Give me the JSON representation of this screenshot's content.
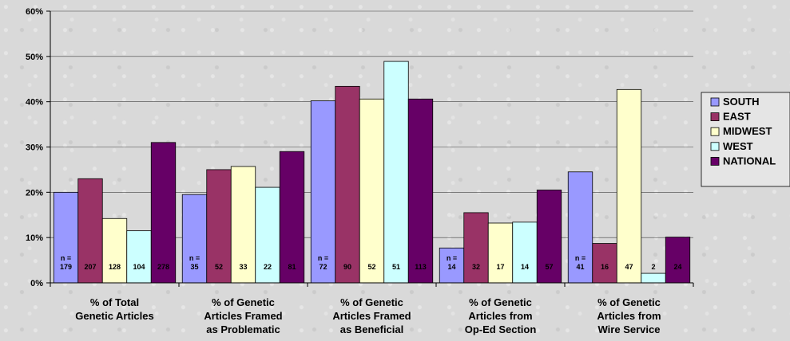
{
  "chart_data": {
    "type": "bar",
    "categories": [
      [
        "% of Total",
        "Genetic Articles"
      ],
      [
        "% of Genetic",
        "Articles Framed",
        "as Problematic"
      ],
      [
        "% of Genetic",
        "Articles Framed",
        "as Beneficial"
      ],
      [
        "% of Genetic",
        "Articles from",
        "Op-Ed Section"
      ],
      [
        "% of Genetic",
        "Articles from",
        "Wire Service"
      ]
    ],
    "ylim": [
      0,
      60
    ],
    "yticks": [
      "0%",
      "10%",
      "20%",
      "30%",
      "40%",
      "50%",
      "60%"
    ],
    "grid": true,
    "legend_position": "right",
    "n_prefix": "n =",
    "series": [
      {
        "name": "SOUTH",
        "color": "#9999ff",
        "values": [
          20,
          19.5,
          40.2,
          7.7,
          24.5
        ],
        "n": [
          "179",
          "35",
          "72",
          "14",
          "41"
        ]
      },
      {
        "name": "EAST",
        "color": "#993366",
        "values": [
          23,
          25,
          43.4,
          15.5,
          8.7
        ],
        "n": [
          "207",
          "52",
          "90",
          "32",
          "16"
        ]
      },
      {
        "name": "MIDWEST",
        "color": "#ffffcc",
        "values": [
          14.2,
          25.7,
          40.6,
          13.2,
          42.7
        ],
        "n": [
          "128",
          "33",
          "52",
          "17",
          "47"
        ]
      },
      {
        "name": "WEST",
        "color": "#ccffff",
        "values": [
          11.5,
          21.1,
          48.9,
          13.4,
          2.1
        ],
        "n": [
          "104",
          "22",
          "51",
          "14",
          "2"
        ]
      },
      {
        "name": "NATIONAL",
        "color": "#660066",
        "values": [
          31,
          29,
          40.6,
          20.5,
          10.1
        ],
        "n": [
          "278",
          "81",
          "113",
          "57",
          "24"
        ]
      }
    ]
  }
}
